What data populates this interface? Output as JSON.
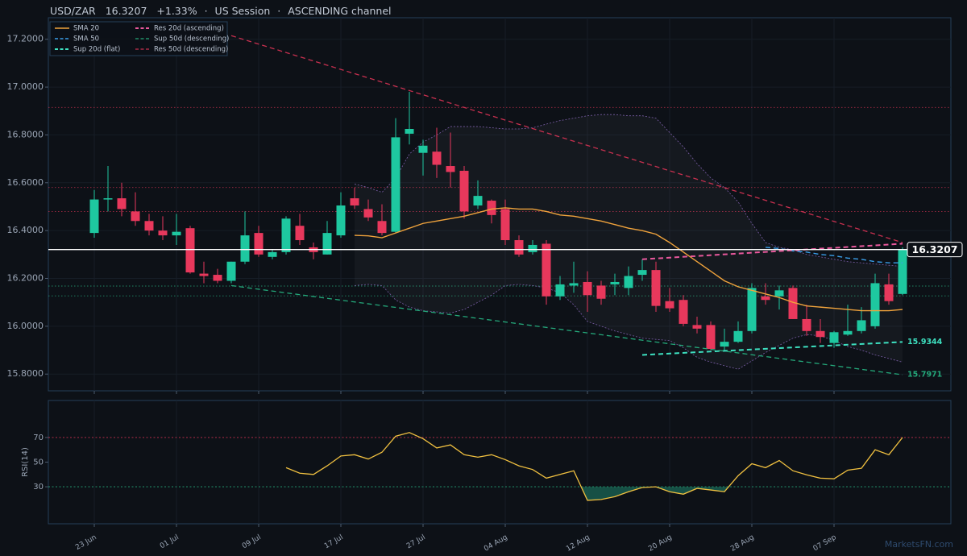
{
  "header": {
    "symbol": "USD/ZAR",
    "change": "+1.33%",
    "separator": "·",
    "session": "US Session",
    "channel": "ASCENDING channel"
  },
  "watermark": "MarketsFN.com",
  "chart_data": [
    {
      "type": "candlestick",
      "categories": [
        "23 Jun",
        null,
        null,
        null,
        null,
        null,
        "01 Jul",
        null,
        null,
        null,
        null,
        null,
        "09 Jul",
        null,
        null,
        null,
        null,
        null,
        "17 Jul",
        null,
        null,
        null,
        null,
        null,
        "27 Jul",
        null,
        null,
        null,
        null,
        null,
        "04 Aug",
        null,
        null,
        null,
        null,
        null,
        "12 Aug",
        null,
        null,
        null,
        null,
        null,
        "20 Aug",
        null,
        null,
        null,
        null,
        null,
        "28 Aug",
        null,
        null,
        null,
        null,
        null,
        "07 Sep",
        null,
        null,
        null,
        null,
        null
      ],
      "open": [
        16.39,
        16.53,
        16.535,
        16.48,
        16.44,
        16.4,
        16.38,
        16.41,
        16.22,
        16.215,
        16.19,
        16.27,
        16.39,
        16.29,
        16.31,
        16.42,
        16.33,
        16.3,
        16.38,
        16.535,
        16.49,
        16.44,
        16.395,
        16.805,
        16.725,
        16.73,
        16.67,
        16.65,
        16.505,
        16.525,
        16.49,
        16.36,
        16.31,
        16.345,
        16.125,
        16.17,
        16.185,
        16.17,
        16.175,
        16.16,
        16.215,
        16.235,
        16.105,
        16.11,
        16.005,
        16.005,
        15.915,
        15.935,
        15.98,
        16.125,
        16.125,
        16.16,
        16.03,
        15.98,
        15.93,
        15.965,
        15.98,
        16.0,
        16.175,
        16.135
      ],
      "high": [
        16.57,
        16.67,
        16.6,
        16.56,
        16.47,
        16.46,
        16.47,
        16.42,
        16.27,
        16.24,
        16.27,
        16.48,
        16.42,
        16.32,
        16.46,
        16.47,
        16.35,
        16.44,
        16.56,
        16.58,
        16.53,
        16.51,
        16.87,
        16.98,
        16.78,
        16.83,
        16.81,
        16.67,
        16.61,
        16.53,
        16.53,
        16.38,
        16.36,
        16.36,
        16.21,
        16.27,
        16.23,
        16.19,
        16.22,
        16.25,
        16.28,
        16.27,
        16.16,
        16.13,
        16.04,
        16.02,
        15.99,
        16.02,
        16.18,
        16.18,
        16.17,
        16.17,
        16.09,
        16.03,
        15.98,
        16.09,
        16.08,
        16.22,
        16.22,
        16.33
      ],
      "low": [
        16.37,
        16.48,
        16.46,
        16.42,
        16.38,
        16.36,
        16.34,
        16.22,
        16.18,
        16.18,
        16.18,
        16.26,
        16.29,
        16.28,
        16.3,
        16.34,
        16.28,
        16.3,
        16.37,
        16.49,
        16.44,
        16.38,
        16.39,
        16.76,
        16.63,
        16.62,
        16.58,
        16.45,
        16.49,
        16.43,
        16.34,
        16.29,
        16.3,
        16.09,
        16.11,
        16.14,
        16.06,
        16.09,
        16.13,
        16.13,
        16.19,
        16.06,
        16.06,
        16.0,
        15.97,
        15.9,
        15.9,
        15.93,
        15.97,
        16.09,
        16.07,
        16.03,
        15.96,
        15.93,
        15.91,
        15.96,
        15.97,
        15.99,
        16.09,
        16.13
      ],
      "close": [
        16.53,
        16.535,
        16.49,
        16.44,
        16.4,
        16.38,
        16.395,
        16.225,
        16.21,
        16.19,
        16.27,
        16.38,
        16.3,
        16.31,
        16.45,
        16.36,
        16.31,
        16.39,
        16.505,
        16.505,
        16.455,
        16.39,
        16.79,
        16.825,
        16.755,
        16.675,
        16.645,
        16.48,
        16.545,
        16.465,
        16.36,
        16.3,
        16.34,
        16.125,
        16.175,
        16.18,
        16.13,
        16.115,
        16.185,
        16.21,
        16.235,
        16.085,
        16.075,
        16.01,
        15.99,
        15.905,
        15.935,
        15.98,
        16.16,
        16.11,
        16.15,
        16.03,
        15.98,
        15.955,
        15.975,
        15.98,
        16.025,
        16.18,
        16.105,
        16.3207
      ],
      "up_color": "#1ec8a0",
      "down_color": "#e8385c",
      "bands": {
        "color": "#7b5ea8",
        "upper": [
          null,
          null,
          null,
          null,
          null,
          null,
          null,
          null,
          null,
          null,
          null,
          null,
          null,
          null,
          null,
          null,
          null,
          null,
          null,
          16.595,
          16.58,
          16.56,
          16.62,
          16.72,
          16.77,
          16.8,
          16.835,
          16.835,
          16.835,
          16.83,
          16.825,
          16.825,
          16.83,
          16.845,
          16.86,
          16.87,
          16.88,
          16.885,
          16.885,
          16.88,
          16.88,
          16.87,
          16.81,
          16.75,
          16.68,
          16.62,
          16.58,
          16.52,
          16.43,
          16.35,
          16.33,
          16.32,
          16.3,
          16.29,
          16.28,
          16.27,
          16.265,
          16.26,
          16.255,
          16.25
        ],
        "lower": [
          null,
          null,
          null,
          null,
          null,
          null,
          null,
          null,
          null,
          null,
          null,
          null,
          null,
          null,
          null,
          null,
          null,
          null,
          null,
          16.17,
          16.175,
          16.17,
          16.11,
          16.08,
          16.065,
          16.06,
          16.055,
          16.07,
          16.1,
          16.13,
          16.17,
          16.175,
          16.17,
          16.16,
          16.14,
          16.09,
          16.02,
          16.0,
          15.98,
          15.965,
          15.95,
          15.945,
          15.94,
          15.91,
          15.87,
          15.85,
          15.835,
          15.82,
          15.855,
          15.89,
          15.92,
          15.95,
          15.965,
          15.96,
          15.94,
          15.915,
          15.9,
          15.88,
          15.865,
          15.85
        ]
      },
      "series": [
        {
          "name": "SMA 20",
          "color": "#f0a33c",
          "dash": false,
          "width": 1.4,
          "values": [
            null,
            null,
            null,
            null,
            null,
            null,
            null,
            null,
            null,
            null,
            null,
            null,
            null,
            null,
            null,
            null,
            null,
            null,
            null,
            16.38,
            16.378,
            16.37,
            16.39,
            16.41,
            16.43,
            16.44,
            16.45,
            16.46,
            16.475,
            16.49,
            16.495,
            16.49,
            16.49,
            16.48,
            16.465,
            16.46,
            16.45,
            16.44,
            16.425,
            16.41,
            16.4,
            16.385,
            16.35,
            16.31,
            16.27,
            16.23,
            16.19,
            16.165,
            16.15,
            16.135,
            16.12,
            16.1,
            16.085,
            16.08,
            16.075,
            16.07,
            16.065,
            16.065,
            16.065,
            16.07
          ]
        },
        {
          "name": "SMA 50",
          "color": "#3a9ee8",
          "dash": true,
          "width": 1.4,
          "values": [
            null,
            null,
            null,
            null,
            null,
            null,
            null,
            null,
            null,
            null,
            null,
            null,
            null,
            null,
            null,
            null,
            null,
            null,
            null,
            null,
            null,
            null,
            null,
            null,
            null,
            null,
            null,
            null,
            null,
            null,
            null,
            null,
            null,
            null,
            null,
            null,
            null,
            null,
            null,
            null,
            null,
            null,
            null,
            null,
            null,
            null,
            null,
            null,
            null,
            16.33,
            16.325,
            16.315,
            16.31,
            16.3,
            16.295,
            16.285,
            16.28,
            16.27,
            16.265,
            16.265
          ]
        },
        {
          "name": "Sup 20d (flat)",
          "color": "#3de0c0",
          "dash": true,
          "width": 2,
          "x": [
            40,
            59
          ],
          "values": [
            15.88,
            15.9344
          ],
          "end_label": true
        },
        {
          "name": "Res 20d (ascending)",
          "color": "#e8589c",
          "dash": true,
          "width": 2,
          "x": [
            40,
            59
          ],
          "values": [
            16.28,
            16.345
          ],
          "end_label": false
        },
        {
          "name": "Sup 50d (descending)",
          "color": "#24a87a",
          "dash": true,
          "width": 1.3,
          "x": [
            10,
            59
          ],
          "values": [
            16.17,
            15.7971
          ],
          "end_label": true
        },
        {
          "name": "Res 50d (descending)",
          "color": "#c8304f",
          "dash": true,
          "width": 1.3,
          "x": [
            10,
            59
          ],
          "values": [
            17.215,
            16.35
          ],
          "end_label": false
        }
      ],
      "levels": [
        {
          "value": 16.915,
          "color": "#c8304f"
        },
        {
          "value": 16.58,
          "color": "#c8304f"
        },
        {
          "value": 16.48,
          "color": "#c8304f"
        },
        {
          "value": 16.168,
          "color": "#24a87a"
        },
        {
          "value": 16.127,
          "color": "#24a87a"
        }
      ],
      "price_line_color": "#ffffff",
      "ylim": [
        15.73,
        17.29
      ],
      "yticks": [
        {
          "value": 15.8,
          "label": "15.8000"
        },
        {
          "value": 16.0,
          "label": "16.0000"
        },
        {
          "value": 16.2,
          "label": "16.2000"
        },
        {
          "value": 16.4,
          "label": "16.4000"
        },
        {
          "value": 16.6,
          "label": "16.6000"
        },
        {
          "value": 16.8,
          "label": "16.8000"
        },
        {
          "value": 17.0,
          "label": "17.0000"
        },
        {
          "value": 17.2,
          "label": "17.2000"
        }
      ],
      "legend": "upper left",
      "grid": true
    },
    {
      "type": "line",
      "ylabel": "RSI(14)",
      "color": "#f0c040",
      "fill_below": 30,
      "fill_color": "#1b6b5a",
      "values": [
        null,
        null,
        null,
        null,
        null,
        null,
        null,
        null,
        null,
        null,
        null,
        null,
        null,
        null,
        45.5,
        41,
        40,
        47,
        55,
        56,
        52.5,
        58,
        71,
        74,
        69,
        61.5,
        64,
        56,
        54,
        56,
        52,
        47,
        44,
        37,
        40,
        43,
        19,
        19.7,
        22,
        26,
        29.4,
        30,
        26,
        24,
        28.7,
        27.4,
        26,
        39,
        48.7,
        45.5,
        51.3,
        43,
        39.7,
        37,
        36.5,
        43.5,
        45,
        60,
        56,
        70
      ],
      "levels": [
        {
          "value": 70,
          "color": "#c8304f"
        },
        {
          "value": 30,
          "color": "#24a87a"
        }
      ],
      "ylim": [
        0,
        100
      ],
      "yticks": [
        30,
        50,
        70
      ],
      "grid": true
    }
  ]
}
